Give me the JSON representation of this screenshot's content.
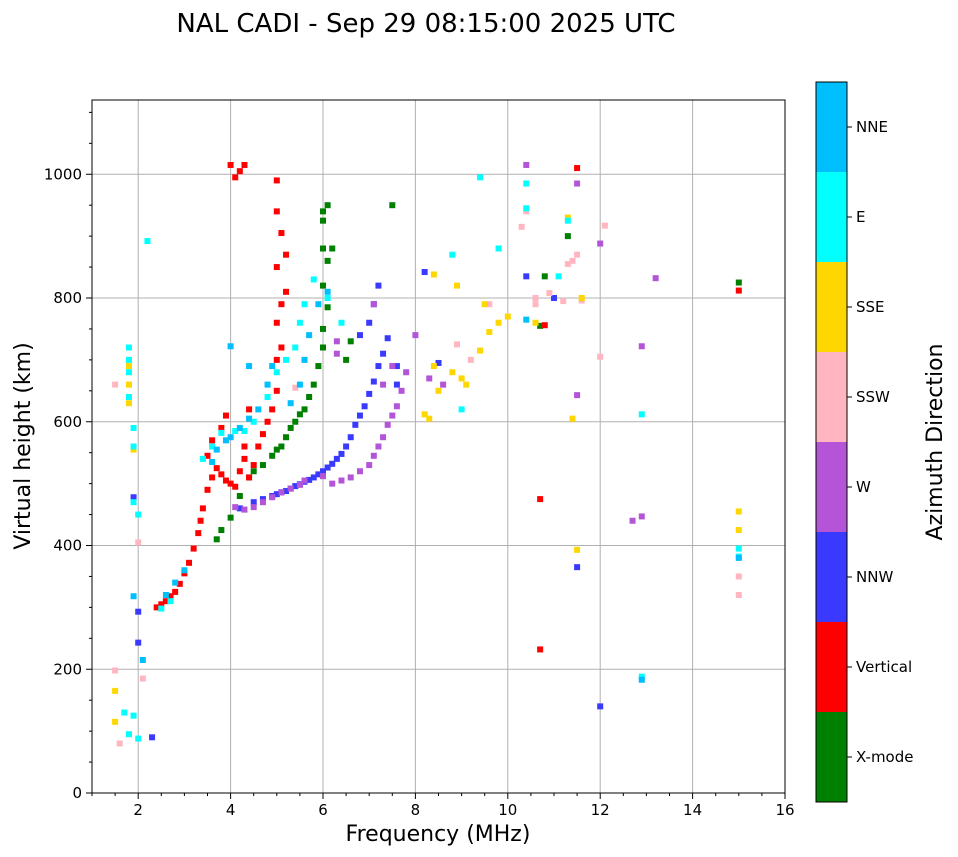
{
  "chart_data": {
    "type": "scatter",
    "title": "NAL CADI - Sep 29 08:15:00 2025 UTC",
    "xlabel": "Frequency (MHz)",
    "ylabel": "Virtual height (km)",
    "xlim": [
      1,
      16
    ],
    "ylim": [
      0,
      1120
    ],
    "xticks": [
      2,
      4,
      6,
      8,
      10,
      12,
      14,
      16
    ],
    "yticks": [
      0,
      200,
      400,
      600,
      800,
      1000
    ],
    "grid": true,
    "colorbar": {
      "label": "Azimuth Direction",
      "categories": [
        {
          "name": "X-mode",
          "color": "#008000"
        },
        {
          "name": "Vertical",
          "color": "#ff0000"
        },
        {
          "name": "NNW",
          "color": "#3a3aff"
        },
        {
          "name": "W",
          "color": "#b455d8"
        },
        {
          "name": "SSW",
          "color": "#ffb6c1"
        },
        {
          "name": "SSE",
          "color": "#ffd700"
        },
        {
          "name": "E",
          "color": "#00ffff"
        },
        {
          "name": "NNE",
          "color": "#00bfff"
        }
      ]
    },
    "series": [
      {
        "name": "X-mode",
        "points": [
          [
            3.7,
            410
          ],
          [
            3.8,
            425
          ],
          [
            4.0,
            445
          ],
          [
            4.2,
            480
          ],
          [
            4.4,
            510
          ],
          [
            4.5,
            520
          ],
          [
            4.7,
            530
          ],
          [
            4.9,
            545
          ],
          [
            5.0,
            555
          ],
          [
            5.1,
            560
          ],
          [
            5.2,
            575
          ],
          [
            5.3,
            590
          ],
          [
            5.4,
            600
          ],
          [
            5.5,
            612
          ],
          [
            5.6,
            620
          ],
          [
            5.7,
            640
          ],
          [
            5.8,
            660
          ],
          [
            5.9,
            690
          ],
          [
            6.0,
            720
          ],
          [
            6.0,
            750
          ],
          [
            6.1,
            785
          ],
          [
            6.0,
            820
          ],
          [
            6.1,
            860
          ],
          [
            6.0,
            880
          ],
          [
            6.0,
            925
          ],
          [
            6.2,
            880
          ],
          [
            6.0,
            940
          ],
          [
            6.1,
            950
          ],
          [
            6.5,
            700
          ],
          [
            6.6,
            730
          ],
          [
            10.7,
            755
          ],
          [
            10.8,
            835
          ],
          [
            11.3,
            900
          ],
          [
            15.0,
            825
          ],
          [
            7.5,
            950
          ]
        ]
      },
      {
        "name": "Vertical",
        "points": [
          [
            2.4,
            300
          ],
          [
            2.5,
            305
          ],
          [
            2.6,
            310
          ],
          [
            2.7,
            318
          ],
          [
            2.8,
            325
          ],
          [
            2.9,
            338
          ],
          [
            3.0,
            355
          ],
          [
            3.1,
            372
          ],
          [
            3.2,
            395
          ],
          [
            3.3,
            420
          ],
          [
            3.35,
            440
          ],
          [
            3.4,
            460
          ],
          [
            3.5,
            490
          ],
          [
            3.6,
            510
          ],
          [
            3.7,
            525
          ],
          [
            3.8,
            515
          ],
          [
            3.9,
            505
          ],
          [
            4.0,
            500
          ],
          [
            4.1,
            495
          ],
          [
            4.2,
            520
          ],
          [
            4.3,
            540
          ],
          [
            4.4,
            510
          ],
          [
            4.5,
            530
          ],
          [
            4.6,
            560
          ],
          [
            4.7,
            580
          ],
          [
            4.8,
            600
          ],
          [
            4.9,
            620
          ],
          [
            5.0,
            650
          ],
          [
            5.0,
            700
          ],
          [
            5.1,
            720
          ],
          [
            5.0,
            760
          ],
          [
            5.1,
            790
          ],
          [
            5.2,
            810
          ],
          [
            5.0,
            850
          ],
          [
            5.2,
            870
          ],
          [
            5.1,
            905
          ],
          [
            5.0,
            940
          ],
          [
            5.0,
            990
          ],
          [
            4.0,
            1015
          ],
          [
            4.1,
            995
          ],
          [
            4.2,
            1005
          ],
          [
            4.3,
            1015
          ],
          [
            3.5,
            545
          ],
          [
            3.6,
            570
          ],
          [
            3.8,
            590
          ],
          [
            3.9,
            610
          ],
          [
            4.3,
            560
          ],
          [
            4.4,
            620
          ],
          [
            10.7,
            475
          ],
          [
            10.7,
            232
          ],
          [
            11.5,
            1010
          ],
          [
            15.0,
            812
          ],
          [
            10.8,
            756
          ]
        ]
      },
      {
        "name": "NNW",
        "points": [
          [
            4.9,
            480
          ],
          [
            5.0,
            483
          ],
          [
            5.1,
            486
          ],
          [
            5.2,
            488
          ],
          [
            5.3,
            492
          ],
          [
            5.4,
            496
          ],
          [
            5.5,
            499
          ],
          [
            5.6,
            503
          ],
          [
            5.7,
            506
          ],
          [
            5.8,
            510
          ],
          [
            5.9,
            515
          ],
          [
            6.0,
            520
          ],
          [
            6.1,
            526
          ],
          [
            6.2,
            532
          ],
          [
            6.3,
            540
          ],
          [
            6.4,
            548
          ],
          [
            6.5,
            560
          ],
          [
            6.6,
            575
          ],
          [
            6.7,
            595
          ],
          [
            6.8,
            610
          ],
          [
            6.9,
            625
          ],
          [
            7.0,
            645
          ],
          [
            7.1,
            665
          ],
          [
            7.2,
            690
          ],
          [
            7.3,
            710
          ],
          [
            7.4,
            735
          ],
          [
            6.8,
            740
          ],
          [
            7.0,
            760
          ],
          [
            7.1,
            790
          ],
          [
            7.2,
            820
          ],
          [
            7.6,
            660
          ],
          [
            7.6,
            690
          ],
          [
            4.5,
            470
          ],
          [
            4.7,
            475
          ],
          [
            4.2,
            460
          ],
          [
            2.0,
            293
          ],
          [
            2.0,
            243
          ],
          [
            1.9,
            478
          ],
          [
            2.3,
            90
          ],
          [
            11.5,
            365
          ],
          [
            12.0,
            140
          ],
          [
            10.4,
            835
          ],
          [
            8.2,
            842
          ],
          [
            8.5,
            695
          ],
          [
            11.0,
            800
          ]
        ]
      },
      {
        "name": "W",
        "points": [
          [
            4.1,
            462
          ],
          [
            4.3,
            458
          ],
          [
            4.5,
            462
          ],
          [
            4.7,
            470
          ],
          [
            4.9,
            478
          ],
          [
            5.1,
            486
          ],
          [
            5.3,
            492
          ],
          [
            5.5,
            498
          ],
          [
            5.6,
            505
          ],
          [
            6.0,
            512
          ],
          [
            6.2,
            500
          ],
          [
            6.4,
            505
          ],
          [
            6.6,
            510
          ],
          [
            6.8,
            520
          ],
          [
            7.0,
            530
          ],
          [
            7.1,
            545
          ],
          [
            7.2,
            560
          ],
          [
            7.3,
            575
          ],
          [
            7.4,
            595
          ],
          [
            7.5,
            610
          ],
          [
            7.6,
            625
          ],
          [
            7.7,
            650
          ],
          [
            7.8,
            680
          ],
          [
            8.0,
            740
          ],
          [
            7.3,
            660
          ],
          [
            7.5,
            690
          ],
          [
            6.3,
            710
          ],
          [
            6.3,
            730
          ],
          [
            7.1,
            790
          ],
          [
            8.3,
            670
          ],
          [
            8.6,
            660
          ],
          [
            10.4,
            1015
          ],
          [
            11.5,
            985
          ],
          [
            12.0,
            888
          ],
          [
            12.7,
            440
          ],
          [
            12.9,
            447
          ],
          [
            12.9,
            722
          ],
          [
            13.2,
            832
          ],
          [
            11.5,
            643
          ]
        ]
      },
      {
        "name": "SSW",
        "points": [
          [
            1.5,
            660
          ],
          [
            1.5,
            198
          ],
          [
            1.6,
            80
          ],
          [
            2.0,
            405
          ],
          [
            2.1,
            185
          ],
          [
            5.4,
            655
          ],
          [
            8.9,
            725
          ],
          [
            10.3,
            915
          ],
          [
            10.4,
            940
          ],
          [
            10.6,
            790
          ],
          [
            10.6,
            800
          ],
          [
            10.9,
            808
          ],
          [
            11.3,
            855
          ],
          [
            11.4,
            860
          ],
          [
            11.5,
            870
          ],
          [
            12.1,
            917
          ],
          [
            12.0,
            705
          ],
          [
            15.0,
            350
          ],
          [
            15.0,
            320
          ],
          [
            9.2,
            700
          ],
          [
            9.6,
            790
          ],
          [
            11.2,
            795
          ],
          [
            11.6,
            796
          ]
        ]
      },
      {
        "name": "SSE",
        "points": [
          [
            1.5,
            115
          ],
          [
            1.5,
            165
          ],
          [
            1.8,
            630
          ],
          [
            1.8,
            660
          ],
          [
            1.8,
            690
          ],
          [
            1.9,
            555
          ],
          [
            8.2,
            612
          ],
          [
            8.3,
            605
          ],
          [
            8.4,
            690
          ],
          [
            8.5,
            650
          ],
          [
            8.8,
            680
          ],
          [
            9.0,
            670
          ],
          [
            9.1,
            660
          ],
          [
            9.4,
            715
          ],
          [
            9.6,
            745
          ],
          [
            9.8,
            760
          ],
          [
            10.0,
            770
          ],
          [
            10.6,
            760
          ],
          [
            11.3,
            930
          ],
          [
            11.4,
            605
          ],
          [
            11.5,
            393
          ],
          [
            11.6,
            800
          ],
          [
            15.0,
            455
          ],
          [
            15.0,
            425
          ],
          [
            8.4,
            838
          ],
          [
            8.9,
            820
          ],
          [
            9.5,
            790
          ]
        ]
      },
      {
        "name": "E",
        "points": [
          [
            1.8,
            720
          ],
          [
            1.8,
            700
          ],
          [
            1.8,
            680
          ],
          [
            1.8,
            640
          ],
          [
            1.9,
            590
          ],
          [
            1.9,
            560
          ],
          [
            1.9,
            470
          ],
          [
            2.0,
            450
          ],
          [
            1.7,
            130
          ],
          [
            1.8,
            95
          ],
          [
            1.9,
            125
          ],
          [
            2.0,
            88
          ],
          [
            2.5,
            298
          ],
          [
            2.7,
            310
          ],
          [
            3.4,
            540
          ],
          [
            3.6,
            560
          ],
          [
            3.8,
            582
          ],
          [
            4.1,
            585
          ],
          [
            4.3,
            585
          ],
          [
            4.5,
            600
          ],
          [
            4.8,
            640
          ],
          [
            5.0,
            680
          ],
          [
            5.2,
            700
          ],
          [
            5.4,
            720
          ],
          [
            5.5,
            760
          ],
          [
            5.6,
            790
          ],
          [
            5.8,
            830
          ],
          [
            6.1,
            800
          ],
          [
            6.4,
            760
          ],
          [
            2.2,
            892
          ],
          [
            8.8,
            870
          ],
          [
            9.4,
            995
          ],
          [
            9.8,
            880
          ],
          [
            10.4,
            985
          ],
          [
            10.4,
            945
          ],
          [
            11.1,
            835
          ],
          [
            11.3,
            925
          ],
          [
            12.9,
            612
          ],
          [
            12.9,
            188
          ],
          [
            15.0,
            395
          ],
          [
            15.0,
            382
          ],
          [
            9.0,
            620
          ]
        ]
      },
      {
        "name": "NNE",
        "points": [
          [
            3.6,
            535
          ],
          [
            3.7,
            555
          ],
          [
            3.9,
            570
          ],
          [
            4.0,
            575
          ],
          [
            4.2,
            590
          ],
          [
            4.4,
            605
          ],
          [
            4.6,
            620
          ],
          [
            4.8,
            660
          ],
          [
            4.9,
            690
          ],
          [
            5.3,
            630
          ],
          [
            5.5,
            660
          ],
          [
            5.6,
            700
          ],
          [
            5.7,
            740
          ],
          [
            5.9,
            790
          ],
          [
            6.1,
            810
          ],
          [
            2.6,
            320
          ],
          [
            2.8,
            340
          ],
          [
            3.0,
            360
          ],
          [
            1.9,
            318
          ],
          [
            2.1,
            215
          ],
          [
            4.0,
            722
          ],
          [
            4.4,
            690
          ],
          [
            10.4,
            765
          ],
          [
            12.9,
            183
          ],
          [
            15.0,
            380
          ]
        ]
      }
    ]
  }
}
